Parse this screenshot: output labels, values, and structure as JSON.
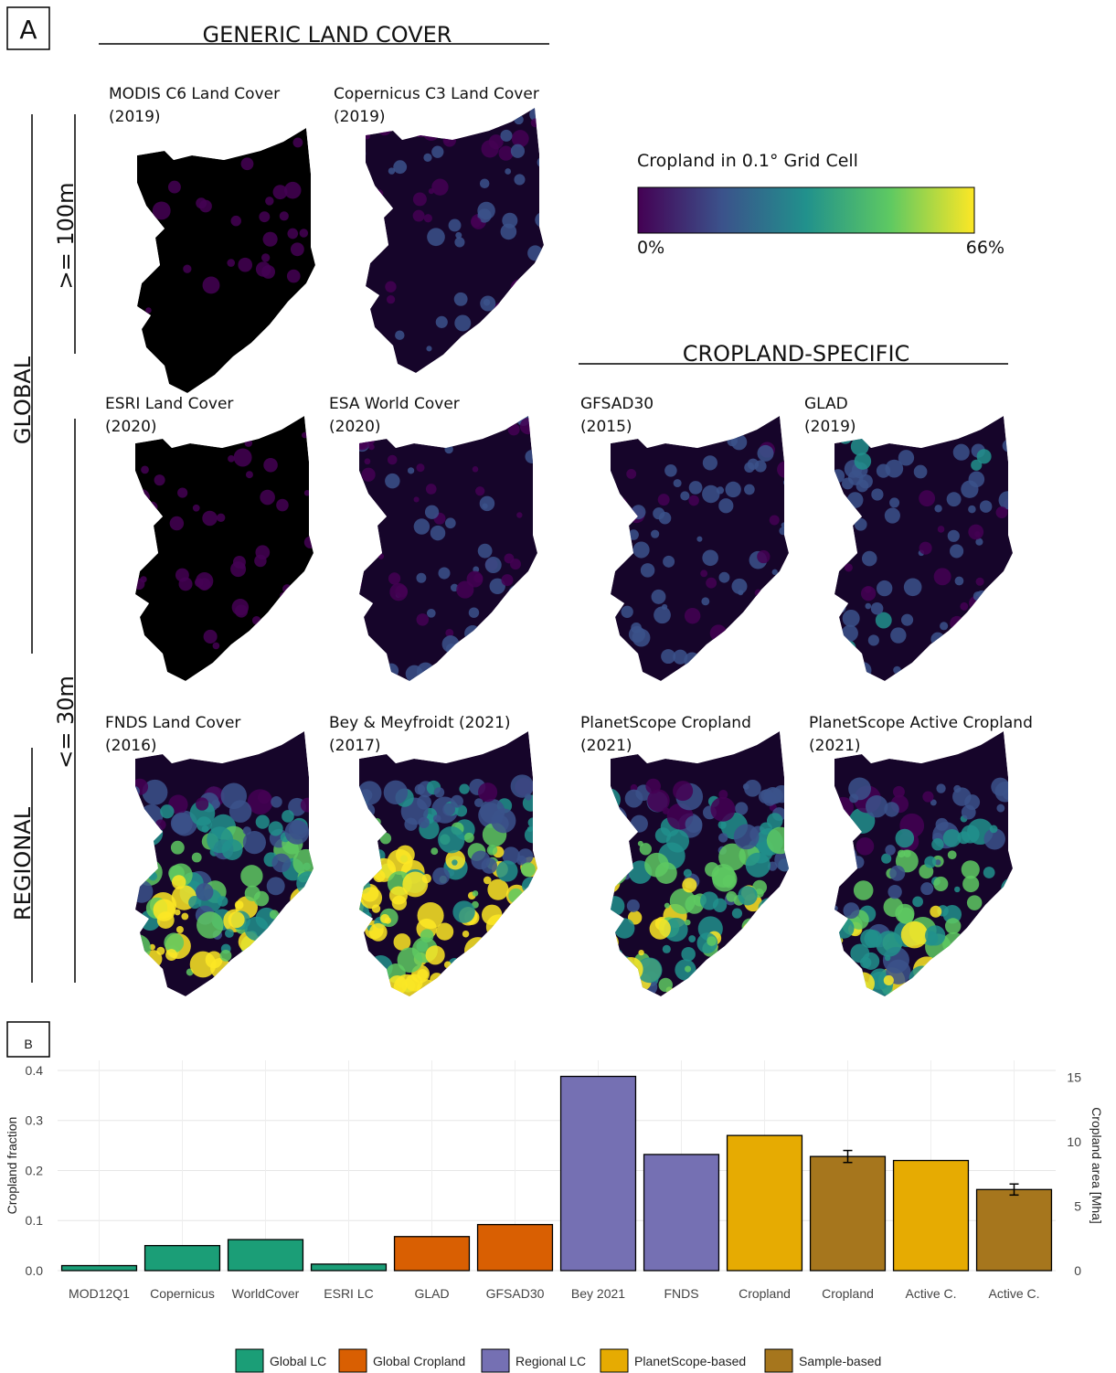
{
  "panel_a": {
    "label": "A",
    "header_generic": "GENERIC LAND COVER",
    "header_cropland": "CROPLAND-SPECIFIC",
    "colorbar": {
      "title": "Cropland in 0.1° Grid Cell",
      "min_label": "0%",
      "max_label": "66%"
    },
    "side_labels": {
      "global": "GLOBAL",
      "regional": "REGIONAL",
      "res_coarse": ">= 100m",
      "res_fine": "<= 30m"
    },
    "maps": [
      {
        "name": "MODIS C6 Land Cover",
        "year": "(2019)"
      },
      {
        "name": "Copernicus C3 Land Cover",
        "year": "(2019)"
      },
      {
        "name": "ESRI Land Cover",
        "year": "(2020)"
      },
      {
        "name": "ESA World Cover",
        "year": "(2020)"
      },
      {
        "name": "GFSAD30",
        "year": "(2015)"
      },
      {
        "name": "GLAD",
        "year": "(2019)"
      },
      {
        "name": "FNDS Land Cover",
        "year": "(2016)"
      },
      {
        "name": "Bey & Meyfroidt (2021)",
        "year": "(2017)"
      },
      {
        "name": "PlanetScope  Cropland",
        "year": "(2021)"
      },
      {
        "name": "PlanetScope Active Cropland",
        "year": "(2021)"
      }
    ]
  },
  "panel_b": {
    "label": "B"
  },
  "chart_data": {
    "type": "bar",
    "y_label": "Cropland fraction",
    "y2_label": "Cropland area [Mha]",
    "categories": [
      "MOD12Q1",
      "Copernicus",
      "WorldCover",
      "ESRI LC",
      "GLAD",
      "GFSAD30",
      "Bey 2021",
      "FNDS",
      "Cropland",
      "Cropland",
      "Active C.",
      "Active C."
    ],
    "series": [
      {
        "name": "Global LC",
        "color": "#1b9e77",
        "values": [
          0.01,
          0.05,
          0.062,
          0.013,
          null,
          null,
          null,
          null,
          null,
          null,
          null,
          null
        ]
      },
      {
        "name": "Global Cropland",
        "color": "#d95f02",
        "values": [
          null,
          null,
          null,
          null,
          0.068,
          0.092,
          null,
          null,
          null,
          null,
          null,
          null
        ]
      },
      {
        "name": "Regional LC",
        "color": "#7570b3",
        "values": [
          null,
          null,
          null,
          null,
          null,
          null,
          0.388,
          0.232,
          null,
          null,
          null,
          null
        ]
      },
      {
        "name": "PlanetScope-based",
        "color": "#e6ab02",
        "values": [
          null,
          null,
          null,
          null,
          null,
          null,
          null,
          null,
          0.27,
          null,
          0.22,
          null
        ]
      },
      {
        "name": "Sample-based",
        "color": "#a6761d",
        "values": [
          null,
          null,
          null,
          null,
          null,
          null,
          null,
          null,
          null,
          0.228,
          null,
          0.162
        ],
        "errors": [
          null,
          null,
          null,
          null,
          null,
          null,
          null,
          null,
          null,
          0.012,
          null,
          0.011
        ]
      }
    ],
    "ylim": [
      0,
      0.42
    ],
    "yticks": [
      {
        "value": 0,
        "label": "0.0"
      },
      0.1,
      0.2,
      0.3,
      0.4
    ],
    "y2lim": [
      0,
      16.3
    ],
    "y2ticks": [
      0,
      5,
      10,
      15
    ],
    "grid": true,
    "legend": "bottom"
  }
}
